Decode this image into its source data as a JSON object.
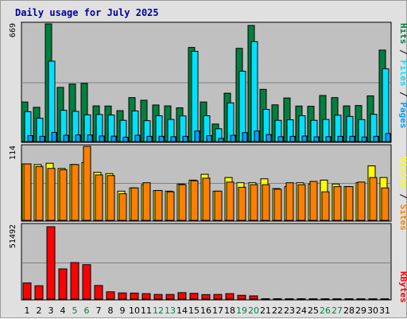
{
  "chart_data": {
    "type": "bar",
    "title": "Daily usage for July 2025",
    "categories": [
      "1",
      "2",
      "3",
      "4",
      "5",
      "6",
      "7",
      "8",
      "9",
      "10",
      "11",
      "12",
      "13",
      "14",
      "15",
      "16",
      "17",
      "18",
      "19",
      "20",
      "21",
      "22",
      "23",
      "24",
      "25",
      "26",
      "27",
      "28",
      "29",
      "30",
      "31"
    ],
    "weekend_days": [
      "5",
      "6",
      "12",
      "13",
      "19",
      "20",
      "26",
      "27"
    ],
    "panels": [
      {
        "id": "top",
        "max_label": "669",
        "ylim": [
          0,
          669
        ],
        "axis_labels": [
          "Pages",
          "Files",
          "Hits"
        ],
        "series": [
          {
            "name": "Hits",
            "color": "#008040",
            "values": [
              225,
              195,
              669,
              308,
              327,
              331,
              203,
              202,
              176,
              250,
              235,
              208,
              203,
              192,
              535,
              225,
              100,
              275,
              530,
              660,
              297,
              209,
              248,
              202,
              201,
              262,
              250,
              203,
              205,
              260,
              520
            ]
          },
          {
            "name": "Files",
            "color": "#00e0ff",
            "values": [
              170,
              133,
              457,
              178,
              172,
              152,
              154,
              151,
              121,
              174,
              119,
              147,
              126,
              146,
              513,
              147,
              73,
              220,
              400,
              568,
              183,
              121,
              124,
              147,
              121,
              126,
              150,
              143,
              125,
              155,
              414
            ]
          },
          {
            "name": "Pages",
            "color": "#00a0ff",
            "values": [
              34,
              30,
              52,
              36,
              38,
              38,
              32,
              31,
              25,
              36,
              30,
              30,
              28,
              30,
              60,
              34,
              18,
              36,
              51,
              60,
              40,
              28,
              30,
              32,
              27,
              28,
              30,
              30,
              26,
              30,
              46
            ]
          }
        ]
      },
      {
        "id": "middle",
        "max_label": "114",
        "ylim": [
          0,
          114
        ],
        "axis_labels": [
          "Sites",
          "Visits"
        ],
        "series": [
          {
            "name": "Visits",
            "color": "#ffff00",
            "values": [
              87,
              86,
              88,
              80,
              86,
              89,
              74,
              72,
              45,
              50,
              55,
              46,
              45,
              56,
              62,
              71,
              45,
              66,
              58,
              58,
              64,
              49,
              52,
              58,
              56,
              62,
              56,
              52,
              58,
              84,
              66
            ]
          },
          {
            "name": "Sites",
            "color": "#ff8000",
            "values": [
              87,
              83,
              80,
              78,
              86,
              114,
              70,
              69,
              41,
              50,
              58,
              46,
              44,
              55,
              61,
              65,
              45,
              59,
              51,
              55,
              55,
              48,
              58,
              55,
              60,
              44,
              52,
              52,
              59,
              66,
              50
            ]
          }
        ]
      },
      {
        "id": "bottom",
        "max_label": "51492",
        "ylim": [
          0,
          51492
        ],
        "axis_labels": [
          "KBytes"
        ],
        "series": [
          {
            "name": "KBytes",
            "color": "#ff0000",
            "values": [
              11500,
              9500,
              51492,
              21500,
              26000,
              24500,
              9700,
              5200,
              4400,
              4300,
              3900,
              3300,
              3300,
              4600,
              4100,
              3200,
              3300,
              3900,
              2700,
              2300,
              300,
              280,
              260,
              300,
              250,
              250,
              250,
              250,
              250,
              250,
              250
            ]
          }
        ]
      }
    ]
  },
  "colors": {
    "frame_bg": "#e0e0e0",
    "plot_bg": "#c0c0c0",
    "title": "#0000a0",
    "weekday_label": "#000000",
    "weekend_label": "#008040",
    "separator": "#0000ff"
  }
}
